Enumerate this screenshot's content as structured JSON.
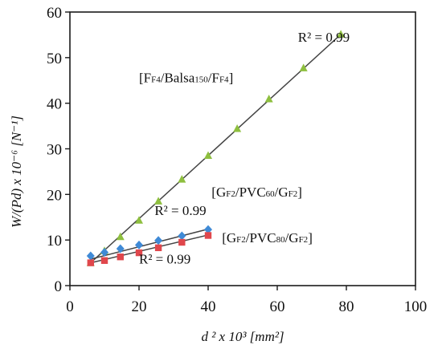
{
  "chart_data": {
    "type": "scatter",
    "title": "",
    "xlabel": "d ² x 10³ [mm²]",
    "ylabel": "W/(Pd) x 10⁻⁶ [N⁻¹]",
    "xlim": [
      0,
      100
    ],
    "ylim": [
      0,
      60
    ],
    "xticks": [
      "0",
      "20",
      "40",
      "60",
      "80",
      "100"
    ],
    "yticks": [
      "0",
      "10",
      "20",
      "30",
      "40",
      "50",
      "60"
    ],
    "grid": false,
    "legend": "none",
    "series": [
      {
        "marker": "triangle",
        "color": "#8ebf3f",
        "points": [
          [
            6,
            5.0
          ],
          [
            10,
            7.6
          ],
          [
            14.6,
            10.7
          ],
          [
            20,
            14.3
          ],
          [
            25.6,
            18.5
          ],
          [
            32.4,
            23.3
          ],
          [
            40,
            28.5
          ],
          [
            48.4,
            34.4
          ],
          [
            57.6,
            40.9
          ],
          [
            67.6,
            47.7
          ],
          [
            78.4,
            55.1
          ]
        ],
        "fit": [
          [
            6,
            5.0
          ],
          [
            78.4,
            55.1
          ]
        ]
      },
      {
        "marker": "diamond",
        "color": "#3f8ad6",
        "points": [
          [
            6,
            6.5
          ],
          [
            10,
            7.3
          ],
          [
            14.6,
            8.1
          ],
          [
            20,
            8.9
          ],
          [
            25.6,
            9.9
          ],
          [
            32.4,
            10.9
          ],
          [
            40,
            12.3
          ]
        ],
        "fit": [
          [
            6,
            5.8
          ],
          [
            40,
            12.4
          ]
        ]
      },
      {
        "marker": "square",
        "color": "#e0474c",
        "points": [
          [
            6,
            5.0
          ],
          [
            10,
            5.5
          ],
          [
            14.6,
            6.3
          ],
          [
            20,
            7.2
          ],
          [
            25.6,
            8.3
          ],
          [
            32.4,
            9.5
          ],
          [
            40,
            11.0
          ]
        ],
        "fit": [
          [
            6,
            5.0
          ],
          [
            40,
            11.1
          ]
        ]
      }
    ],
    "annotations": [
      {
        "kind": "r2",
        "text": "R² = 0.99",
        "x": 66,
        "y": 53.5
      },
      {
        "kind": "label",
        "parts": [
          [
            "[F",
            ""
          ],
          [
            "F4",
            "sub"
          ],
          [
            "/Balsa",
            ""
          ],
          [
            "150",
            "sub"
          ],
          [
            "/F",
            ""
          ],
          [
            "F4",
            "sub"
          ],
          [
            "]",
            ""
          ]
        ],
        "x": 20,
        "y": 44.6
      },
      {
        "kind": "r2",
        "text": "R² = 0.99",
        "x": 24.5,
        "y": 15.5
      },
      {
        "kind": "label",
        "parts": [
          [
            "[G",
            ""
          ],
          [
            "F2",
            "sub"
          ],
          [
            "/PVC",
            ""
          ],
          [
            "60",
            "sub"
          ],
          [
            "/G",
            ""
          ],
          [
            "F2",
            "sub"
          ],
          [
            "]",
            ""
          ]
        ],
        "x": 41,
        "y": 19.5
      },
      {
        "kind": "label",
        "parts": [
          [
            "[G",
            ""
          ],
          [
            "F2",
            "sub"
          ],
          [
            "/PVC",
            ""
          ],
          [
            "80",
            "sub"
          ],
          [
            "/G",
            ""
          ],
          [
            "F2",
            "sub"
          ],
          [
            "]",
            ""
          ]
        ],
        "x": 44,
        "y": 9.5
      },
      {
        "kind": "r2",
        "text": "R² = 0.99",
        "x": 20,
        "y": 4.8
      }
    ]
  }
}
